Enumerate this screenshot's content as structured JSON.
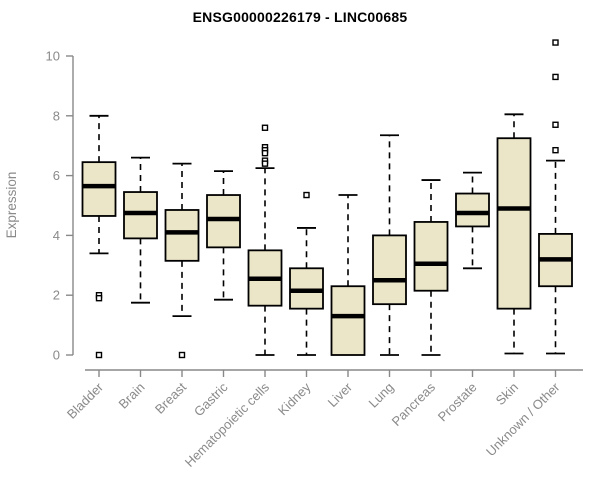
{
  "title": "ENSG00000226179 - LINC00685",
  "colors": {
    "box_fill": "#EBE6C8",
    "box_stroke": "#000000",
    "median": "#000000",
    "outlier_fill": "#FFFFFF",
    "axis": "#888888",
    "axis_label": "#8A8A8A",
    "title": "#000000",
    "background": "#FFFFFF"
  },
  "chart_data": {
    "type": "boxplot",
    "title": "ENSG00000226179 - LINC00685",
    "xlabel": "",
    "ylabel": "Expression",
    "ylim": [
      0,
      10
    ],
    "yticks": [
      0,
      2,
      4,
      6,
      8,
      10
    ],
    "grid": "off",
    "legend": "none",
    "categories": [
      "Bladder",
      "Brain",
      "Breast",
      "Gastric",
      "Hematopoietic cells",
      "Kidney",
      "Liver",
      "Lung",
      "Pancreas",
      "Prostate",
      "Skin",
      "Unknown / Other"
    ],
    "series": [
      {
        "category": "Bladder",
        "whisker_low": 3.4,
        "q1": 4.65,
        "median": 5.65,
        "q3": 6.45,
        "whisker_high": 8.0,
        "outliers": [
          2.0,
          1.9,
          0.0
        ]
      },
      {
        "category": "Brain",
        "whisker_low": 1.75,
        "q1": 3.9,
        "median": 4.75,
        "q3": 5.45,
        "whisker_high": 6.6,
        "outliers": []
      },
      {
        "category": "Breast",
        "whisker_low": 1.3,
        "q1": 3.15,
        "median": 4.1,
        "q3": 4.85,
        "whisker_high": 6.4,
        "outliers": [
          0.0
        ]
      },
      {
        "category": "Gastric",
        "whisker_low": 1.85,
        "q1": 3.6,
        "median": 4.55,
        "q3": 5.35,
        "whisker_high": 6.15,
        "outliers": []
      },
      {
        "category": "Hematopoietic cells",
        "whisker_low": 0.0,
        "q1": 1.65,
        "median": 2.55,
        "q3": 3.5,
        "whisker_high": 6.25,
        "outliers": [
          7.6,
          6.95,
          6.85,
          6.75,
          6.5,
          6.4
        ]
      },
      {
        "category": "Kidney",
        "whisker_low": 0.0,
        "q1": 1.55,
        "median": 2.15,
        "q3": 2.9,
        "whisker_high": 4.25,
        "outliers": [
          5.35
        ]
      },
      {
        "category": "Liver",
        "whisker_low": 0.0,
        "q1": 0.0,
        "median": 1.3,
        "q3": 2.3,
        "whisker_high": 5.35,
        "outliers": []
      },
      {
        "category": "Lung",
        "whisker_low": 0.0,
        "q1": 1.7,
        "median": 2.5,
        "q3": 4.0,
        "whisker_high": 7.35,
        "outliers": []
      },
      {
        "category": "Pancreas",
        "whisker_low": 0.0,
        "q1": 2.15,
        "median": 3.05,
        "q3": 4.45,
        "whisker_high": 5.85,
        "outliers": []
      },
      {
        "category": "Prostate",
        "whisker_low": 2.9,
        "q1": 4.3,
        "median": 4.75,
        "q3": 5.4,
        "whisker_high": 6.1,
        "outliers": []
      },
      {
        "category": "Skin",
        "whisker_low": 0.05,
        "q1": 1.55,
        "median": 4.9,
        "q3": 7.25,
        "whisker_high": 8.05,
        "outliers": []
      },
      {
        "category": "Unknown / Other",
        "whisker_low": 0.05,
        "q1": 2.3,
        "median": 3.2,
        "q3": 4.05,
        "whisker_high": 6.5,
        "outliers": [
          10.45,
          9.3,
          7.7,
          6.85
        ]
      }
    ]
  }
}
